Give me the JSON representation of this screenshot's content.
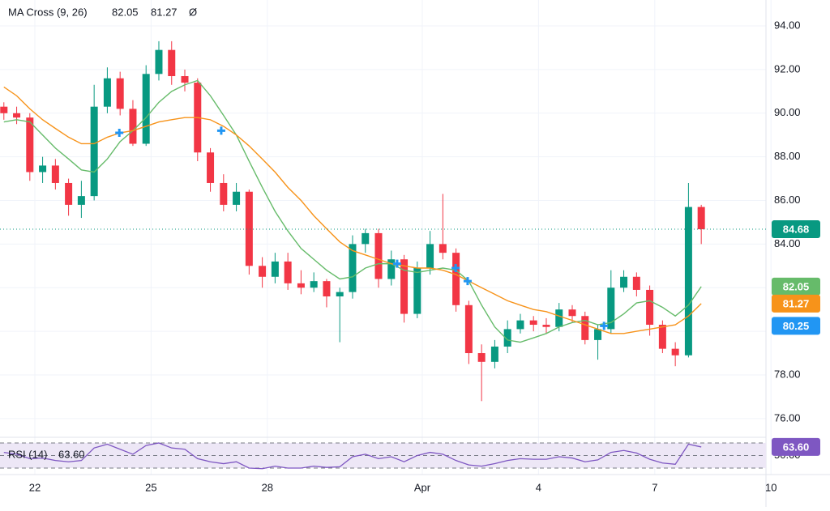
{
  "chart_data": {
    "type": "candlestick",
    "title": "MA Cross (9, 26)",
    "title_symbol": "Ø",
    "up_color": "#089981",
    "down_color": "#f23645",
    "x": [
      21.2,
      21.53,
      21.87,
      22.2,
      22.53,
      22.87,
      23.2,
      23.53,
      23.87,
      24.2,
      24.53,
      24.87,
      25.2,
      25.53,
      25.87,
      26.2,
      26.53,
      26.87,
      27.2,
      27.53,
      27.87,
      28.2,
      28.53,
      28.87,
      29.2,
      29.53,
      29.87,
      30.2,
      30.53,
      30.87,
      31.2,
      31.53,
      31.87,
      32.2,
      32.53,
      32.87,
      33.2,
      33.53,
      33.87,
      34.2,
      34.53,
      34.87,
      35.2,
      35.53,
      35.87,
      36.2,
      36.53,
      36.87,
      37.2,
      37.53,
      37.87,
      38.2,
      38.53,
      38.87,
      39.2
    ],
    "open": [
      90.3,
      90.0,
      89.8,
      87.3,
      87.6,
      86.8,
      85.8,
      86.2,
      90.3,
      91.6,
      90.2,
      88.6,
      91.8,
      92.9,
      91.7,
      91.4,
      88.2,
      86.8,
      85.8,
      86.4,
      83.0,
      82.5,
      83.2,
      82.2,
      82.0,
      82.3,
      81.6,
      81.8,
      84.0,
      84.5,
      82.4,
      83.3,
      80.8,
      82.9,
      84.0,
      83.6,
      81.2,
      79.0,
      78.6,
      79.3,
      80.1,
      80.5,
      80.3,
      80.2,
      81.0,
      80.7,
      79.6,
      80.1,
      82.0,
      82.5,
      81.9,
      80.3,
      79.2,
      78.9,
      85.7
    ],
    "high": [
      90.5,
      90.3,
      90.0,
      88.0,
      87.9,
      87.0,
      86.9,
      91.3,
      92.1,
      91.9,
      90.6,
      92.2,
      93.3,
      93.3,
      92.0,
      91.6,
      88.4,
      87.2,
      86.8,
      86.5,
      83.4,
      83.6,
      83.6,
      82.8,
      82.7,
      82.4,
      82.0,
      84.4,
      84.7,
      84.7,
      83.7,
      83.5,
      83.2,
      84.6,
      86.3,
      83.8,
      81.4,
      79.4,
      79.6,
      80.5,
      80.8,
      80.7,
      80.6,
      81.3,
      81.2,
      80.9,
      80.3,
      82.8,
      82.8,
      82.7,
      82.1,
      80.5,
      79.5,
      86.8,
      85.8
    ],
    "low": [
      89.7,
      89.5,
      86.9,
      86.8,
      86.5,
      85.3,
      85.2,
      86.0,
      90.0,
      89.9,
      88.5,
      88.5,
      91.5,
      91.3,
      91.0,
      87.8,
      86.4,
      85.5,
      85.5,
      82.6,
      82.0,
      82.2,
      81.9,
      81.7,
      81.8,
      81.1,
      79.5,
      81.5,
      83.6,
      82.0,
      82.1,
      80.4,
      80.6,
      82.6,
      83.3,
      80.9,
      78.5,
      76.8,
      78.3,
      79.0,
      79.9,
      80.0,
      79.9,
      80.0,
      80.4,
      79.4,
      78.7,
      79.9,
      81.8,
      81.6,
      79.8,
      79.0,
      78.4,
      78.8,
      84.0
    ],
    "close": [
      90.0,
      89.8,
      87.3,
      87.6,
      86.8,
      85.8,
      86.2,
      90.3,
      91.6,
      90.2,
      88.6,
      91.8,
      92.9,
      91.7,
      91.4,
      88.2,
      86.8,
      85.8,
      86.4,
      83.0,
      82.5,
      83.2,
      82.2,
      82.0,
      82.3,
      81.6,
      81.8,
      84.0,
      84.5,
      82.4,
      83.3,
      80.8,
      82.9,
      84.0,
      83.6,
      81.2,
      79.0,
      78.6,
      79.3,
      80.1,
      80.5,
      80.3,
      80.2,
      81.0,
      80.7,
      79.6,
      80.1,
      82.0,
      82.5,
      81.9,
      80.3,
      79.2,
      78.9,
      85.7,
      84.68
    ],
    "ma": [
      {
        "color": "#66bb6a",
        "values": [
          89.6,
          89.7,
          89.6,
          89.0,
          88.4,
          87.9,
          87.4,
          87.3,
          87.9,
          88.7,
          89.2,
          89.8,
          90.5,
          91.0,
          91.3,
          91.5,
          90.8,
          89.9,
          89.0,
          87.8,
          86.6,
          85.5,
          84.6,
          83.8,
          83.3,
          82.8,
          82.4,
          82.5,
          82.9,
          83.1,
          83.1,
          82.8,
          82.7,
          82.8,
          82.9,
          82.8,
          82.3,
          81.2,
          80.2,
          79.6,
          79.5,
          79.7,
          79.9,
          80.2,
          80.4,
          80.5,
          80.3,
          80.4,
          80.8,
          81.3,
          81.4,
          81.1,
          80.7,
          81.2,
          82.05
        ]
      },
      {
        "color": "#f7931a",
        "values": [
          91.2,
          90.8,
          90.2,
          89.7,
          89.3,
          88.9,
          88.6,
          88.6,
          88.9,
          89.1,
          89.2,
          89.4,
          89.6,
          89.7,
          89.8,
          89.8,
          89.7,
          89.4,
          89.0,
          88.5,
          87.9,
          87.3,
          86.6,
          86.0,
          85.3,
          84.7,
          84.1,
          83.7,
          83.5,
          83.3,
          83.1,
          83.0,
          82.9,
          82.9,
          82.8,
          82.6,
          82.3,
          82.0,
          81.7,
          81.4,
          81.2,
          81.0,
          80.9,
          80.7,
          80.5,
          80.3,
          80.1,
          79.9,
          79.9,
          80.0,
          80.1,
          80.2,
          80.3,
          80.7,
          81.27
        ]
      }
    ],
    "markers": {
      "color": "#2196f3",
      "x": [
        24.18,
        26.81,
        31.35,
        32.86,
        33.17,
        36.69
      ],
      "y": [
        89.1,
        89.2,
        83.1,
        82.9,
        82.3,
        80.25
      ]
    },
    "xlim": [
      21.1,
      40.87
    ],
    "xticks": [
      22,
      25,
      28,
      {
        "value": 32,
        "label": "Apr"
      },
      {
        "value": 35,
        "label": "4"
      },
      {
        "value": 38,
        "label": "7"
      },
      {
        "value": 41,
        "label": "10"
      }
    ],
    "ylim": [
      75.14,
      95.19
    ],
    "yticks": [
      {
        "value": 76,
        "label": "76.00"
      },
      {
        "value": 78,
        "label": "78.00"
      },
      {
        "value": 80,
        "label": "80.00"
      },
      {
        "value": 82,
        "label": "82.00"
      },
      {
        "value": 84,
        "label": "84.00"
      },
      {
        "value": 86,
        "label": "86.00"
      },
      {
        "value": 88,
        "label": "88.00"
      },
      {
        "value": 90,
        "label": "90.00"
      },
      {
        "value": 92,
        "label": "92.00"
      },
      {
        "value": 94,
        "label": "94.00"
      }
    ],
    "grid": true,
    "rsi": {
      "title": "RSI (14)",
      "color": "#7e57c2",
      "band_color": "#ede7f6",
      "values": [
        55,
        52,
        45,
        46,
        42,
        40,
        42,
        62,
        68,
        60,
        52,
        66,
        70,
        62,
        60,
        45,
        40,
        37,
        40,
        30,
        29,
        33,
        30,
        30,
        33,
        31,
        32,
        48,
        52,
        45,
        48,
        40,
        50,
        55,
        52,
        42,
        35,
        33,
        37,
        42,
        45,
        44,
        44,
        48,
        46,
        40,
        43,
        55,
        58,
        54,
        44,
        38,
        36,
        68,
        63.6
      ],
      "last_label": "63.60",
      "ylim": [
        23.5,
        79
      ],
      "bands": [
        30,
        70
      ],
      "yticks": [
        {
          "value": 50,
          "label": "50.00"
        }
      ]
    }
  }
}
